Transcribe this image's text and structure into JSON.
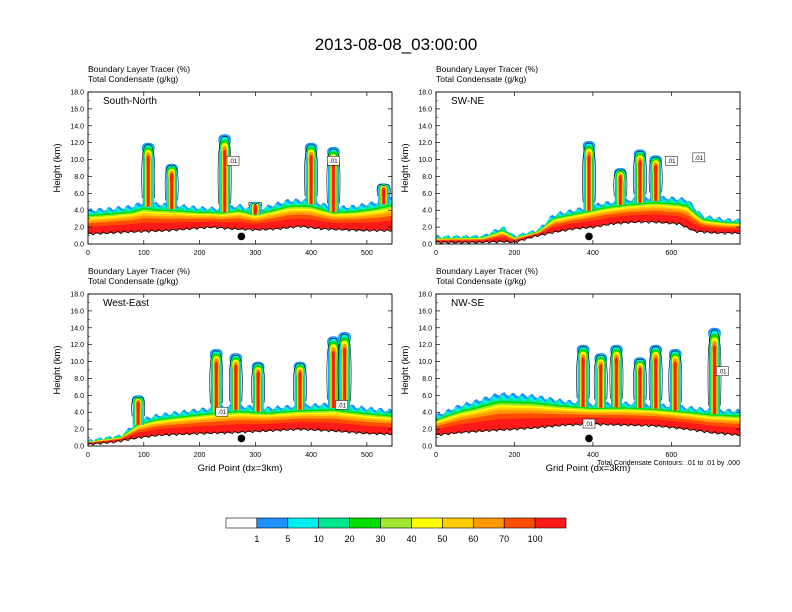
{
  "title": "2013-08-08_03:00:00",
  "chart_data": [
    {
      "type": "area",
      "panel": "South-North",
      "header_lines": [
        "Boundary Layer Tracer    (%)",
        "Total Condensate    (g/kg)"
      ],
      "ylabel": "Height (km)",
      "xlabel": "",
      "xlim": [
        0,
        545
      ],
      "ylim": [
        0,
        18
      ],
      "xticks": [
        0,
        100,
        200,
        300,
        400,
        500
      ],
      "yticks": [
        "0.0",
        "2.0",
        "4.0",
        "6.0",
        "8.0",
        "10.0",
        "12.0",
        "14.0",
        "16.0",
        "18.0"
      ],
      "marker_x": 275,
      "terrain_km": [
        [
          0,
          1.2
        ],
        [
          30,
          1.3
        ],
        [
          60,
          1.4
        ],
        [
          100,
          1.5
        ],
        [
          140,
          1.6
        ],
        [
          180,
          1.8
        ],
        [
          220,
          2.0
        ],
        [
          260,
          1.8
        ],
        [
          300,
          1.7
        ],
        [
          340,
          1.8
        ],
        [
          380,
          2.1
        ],
        [
          420,
          1.8
        ],
        [
          460,
          1.7
        ],
        [
          500,
          1.6
        ],
        [
          545,
          1.6
        ]
      ],
      "pbl_top_km": [
        [
          0,
          4.0
        ],
        [
          40,
          4.2
        ],
        [
          80,
          4.5
        ],
        [
          100,
          5.0
        ],
        [
          120,
          4.8
        ],
        [
          160,
          4.6
        ],
        [
          200,
          4.3
        ],
        [
          240,
          4.2
        ],
        [
          270,
          4.6
        ],
        [
          300,
          4.0
        ],
        [
          330,
          4.6
        ],
        [
          360,
          5.2
        ],
        [
          400,
          5.2
        ],
        [
          440,
          4.3
        ],
        [
          480,
          4.5
        ],
        [
          520,
          5.0
        ],
        [
          545,
          5.5
        ]
      ],
      "plumes": [
        [
          108,
          12.0
        ],
        [
          150,
          9.5
        ],
        [
          245,
          13.0
        ],
        [
          300,
          5.0
        ],
        [
          400,
          12.0
        ],
        [
          440,
          11.5
        ],
        [
          530,
          7.2
        ]
      ],
      "contour_tags": [
        [
          260,
          9.8,
          ".01"
        ],
        [
          440,
          9.8,
          ".01"
        ]
      ]
    },
    {
      "type": "area",
      "panel": "SW-NE",
      "header_lines": [
        "Boundary Layer Tracer    (%)",
        "Total Condensate    (g/kg)"
      ],
      "ylabel": "Height (km)",
      "xlabel": "",
      "xlim": [
        0,
        775
      ],
      "ylim": [
        0,
        18
      ],
      "xticks": [
        0,
        200,
        400,
        600
      ],
      "yticks": [
        "0.0",
        "2.0",
        "4.0",
        "6.0",
        "8.0",
        "10.0",
        "12.0",
        "14.0",
        "16.0",
        "18.0"
      ],
      "marker_x": 390,
      "terrain_km": [
        [
          0,
          0.2
        ],
        [
          100,
          0.2
        ],
        [
          170,
          0.3
        ],
        [
          200,
          0.2
        ],
        [
          250,
          0.9
        ],
        [
          300,
          1.4
        ],
        [
          350,
          1.8
        ],
        [
          400,
          2.0
        ],
        [
          450,
          2.4
        ],
        [
          500,
          2.6
        ],
        [
          560,
          2.6
        ],
        [
          620,
          2.4
        ],
        [
          660,
          1.5
        ],
        [
          720,
          1.3
        ],
        [
          775,
          1.3
        ]
      ],
      "pbl_top_km": [
        [
          0,
          0.8
        ],
        [
          120,
          0.9
        ],
        [
          170,
          2.0
        ],
        [
          200,
          0.9
        ],
        [
          260,
          1.6
        ],
        [
          300,
          3.5
        ],
        [
          360,
          4.1
        ],
        [
          420,
          4.8
        ],
        [
          480,
          5.2
        ],
        [
          560,
          5.6
        ],
        [
          640,
          5.3
        ],
        [
          680,
          3.3
        ],
        [
          740,
          2.9
        ],
        [
          775,
          2.8
        ]
      ],
      "plumes": [
        [
          390,
          12.2
        ],
        [
          470,
          9.0
        ],
        [
          520,
          11.2
        ],
        [
          560,
          10.5
        ]
      ],
      "contour_tags": [
        [
          600,
          9.8,
          ".01"
        ],
        [
          670,
          10.2,
          ".01"
        ]
      ]
    },
    {
      "type": "area",
      "panel": "West-East",
      "header_lines": [
        "Boundary Layer Tracer    (%)",
        "Total Condensate    (g/kg)"
      ],
      "ylabel": "Height (km)",
      "xlabel": "Grid Point (dx=3km)",
      "xlim": [
        0,
        545
      ],
      "ylim": [
        0,
        18
      ],
      "xticks": [
        0,
        100,
        200,
        300,
        400,
        500
      ],
      "yticks": [
        "0.0",
        "2.0",
        "4.0",
        "6.0",
        "8.0",
        "10.0",
        "12.0",
        "14.0",
        "16.0",
        "18.0"
      ],
      "marker_x": 275,
      "terrain_km": [
        [
          0,
          0.2
        ],
        [
          50,
          0.5
        ],
        [
          90,
          1.0
        ],
        [
          130,
          1.3
        ],
        [
          200,
          1.5
        ],
        [
          260,
          1.6
        ],
        [
          320,
          1.8
        ],
        [
          380,
          2.0
        ],
        [
          440,
          1.8
        ],
        [
          500,
          1.5
        ],
        [
          545,
          1.4
        ]
      ],
      "pbl_top_km": [
        [
          0,
          0.6
        ],
        [
          60,
          1.2
        ],
        [
          90,
          3.0
        ],
        [
          120,
          3.6
        ],
        [
          160,
          4.0
        ],
        [
          220,
          4.5
        ],
        [
          270,
          4.8
        ],
        [
          320,
          4.5
        ],
        [
          380,
          4.8
        ],
        [
          440,
          5.0
        ],
        [
          500,
          4.5
        ],
        [
          545,
          4.2
        ]
      ],
      "plumes": [
        [
          90,
          6.0
        ],
        [
          230,
          11.5
        ],
        [
          265,
          11.0
        ],
        [
          305,
          10.0
        ],
        [
          380,
          10.0
        ],
        [
          440,
          13.0
        ],
        [
          460,
          13.5
        ]
      ],
      "contour_tags": [
        [
          240,
          4.0,
          ".01"
        ],
        [
          455,
          4.8,
          ".01"
        ]
      ]
    },
    {
      "type": "area",
      "panel": "NW-SE",
      "header_lines": [
        "Boundary Layer Tracer    (%)",
        "Total Condensate    (g/kg)"
      ],
      "ylabel": "Height (km)",
      "xlabel": "Grid Point (dx=3km)",
      "xlim": [
        0,
        775
      ],
      "ylim": [
        0,
        18
      ],
      "xticks": [
        0,
        200,
        400,
        600
      ],
      "yticks": [
        "0.0",
        "2.0",
        "4.0",
        "6.0",
        "8.0",
        "10.0",
        "12.0",
        "14.0",
        "16.0",
        "18.0"
      ],
      "marker_x": 390,
      "terrain_km": [
        [
          0,
          1.3
        ],
        [
          60,
          1.6
        ],
        [
          120,
          1.8
        ],
        [
          200,
          2.0
        ],
        [
          260,
          2.2
        ],
        [
          330,
          2.5
        ],
        [
          400,
          2.6
        ],
        [
          480,
          2.5
        ],
        [
          560,
          2.4
        ],
        [
          640,
          2.0
        ],
        [
          700,
          1.6
        ],
        [
          775,
          1.3
        ]
      ],
      "pbl_top_km": [
        [
          0,
          3.6
        ],
        [
          60,
          4.8
        ],
        [
          100,
          5.3
        ],
        [
          160,
          6.2
        ],
        [
          240,
          6.0
        ],
        [
          320,
          5.4
        ],
        [
          400,
          5.0
        ],
        [
          480,
          5.1
        ],
        [
          560,
          4.9
        ],
        [
          640,
          4.6
        ],
        [
          700,
          4.3
        ],
        [
          775,
          4.2
        ]
      ],
      "plumes": [
        [
          375,
          12.0
        ],
        [
          420,
          11.0
        ],
        [
          460,
          12.0
        ],
        [
          520,
          10.5
        ],
        [
          560,
          12.0
        ],
        [
          610,
          11.5
        ],
        [
          710,
          14.0
        ]
      ],
      "contour_tags": [
        [
          390,
          2.6,
          ".01"
        ],
        [
          730,
          8.8,
          ".01"
        ]
      ],
      "note": "Total Condensate Contours: .01 to .01 by .000"
    }
  ],
  "colorbar": {
    "colors": [
      "#ffffff",
      "#1e90ff",
      "#00f0f0",
      "#00e68c",
      "#00dd00",
      "#a0e632",
      "#ffff00",
      "#ffcc00",
      "#ff9900",
      "#ff4d00",
      "#ff1a1a"
    ],
    "labels": [
      "1",
      "5",
      "10",
      "20",
      "30",
      "40",
      "50",
      "60",
      "70",
      "100"
    ]
  }
}
